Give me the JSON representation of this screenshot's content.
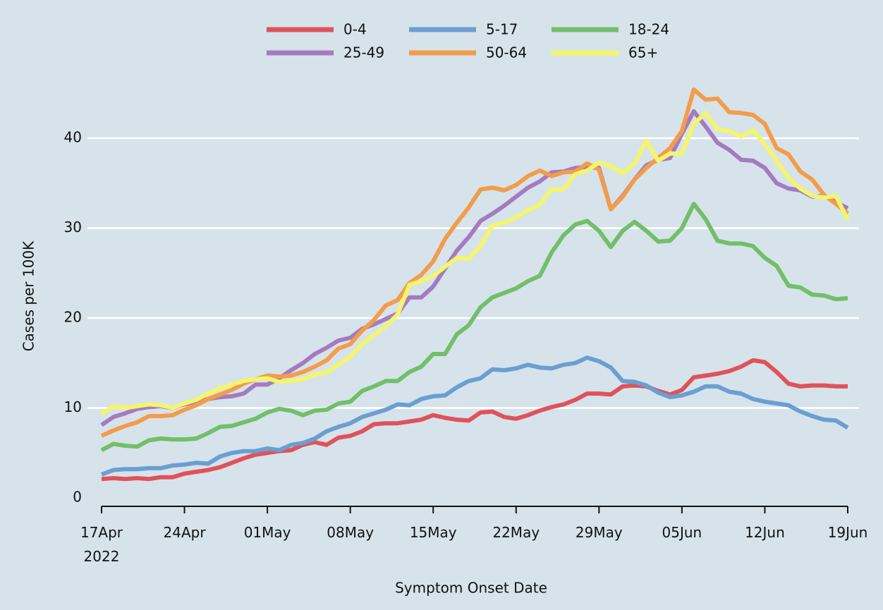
{
  "chart_data": {
    "type": "line",
    "x": [
      "2022-04-17",
      "2022-04-18",
      "2022-04-19",
      "2022-04-20",
      "2022-04-21",
      "2022-04-22",
      "2022-04-23",
      "2022-04-24",
      "2022-04-25",
      "2022-04-26",
      "2022-04-27",
      "2022-04-28",
      "2022-04-29",
      "2022-04-30",
      "2022-05-01",
      "2022-05-02",
      "2022-05-03",
      "2022-05-04",
      "2022-05-05",
      "2022-05-06",
      "2022-05-07",
      "2022-05-08",
      "2022-05-09",
      "2022-05-10",
      "2022-05-11",
      "2022-05-12",
      "2022-05-13",
      "2022-05-14",
      "2022-05-15",
      "2022-05-16",
      "2022-05-17",
      "2022-05-18",
      "2022-05-19",
      "2022-05-20",
      "2022-05-21",
      "2022-05-22",
      "2022-05-23",
      "2022-05-24",
      "2022-05-25",
      "2022-05-26",
      "2022-05-27",
      "2022-05-28",
      "2022-05-29",
      "2022-05-30",
      "2022-05-31",
      "2022-06-01",
      "2022-06-02",
      "2022-06-03",
      "2022-06-04",
      "2022-06-05",
      "2022-06-06",
      "2022-06-07",
      "2022-06-08",
      "2022-06-09",
      "2022-06-10",
      "2022-06-11",
      "2022-06-12",
      "2022-06-13",
      "2022-06-14",
      "2022-06-15",
      "2022-06-16",
      "2022-06-17",
      "2022-06-18",
      "2022-06-19"
    ],
    "series": [
      {
        "name": "0-4",
        "color": "#e0525a",
        "values": [
          2.1,
          2.2,
          2.1,
          2.2,
          2.1,
          2.3,
          2.3,
          2.7,
          2.9,
          3.1,
          3.4,
          3.9,
          4.4,
          4.8,
          5.0,
          5.2,
          5.3,
          5.9,
          6.2,
          5.9,
          6.7,
          6.9,
          7.4,
          8.2,
          8.3,
          8.3,
          8.5,
          8.7,
          9.2,
          8.9,
          8.7,
          8.6,
          9.5,
          9.6,
          9.0,
          8.8,
          9.2,
          9.7,
          10.1,
          10.4,
          10.9,
          11.6,
          11.6,
          11.5,
          12.4,
          12.5,
          12.4,
          11.9,
          11.5,
          12.0,
          13.4,
          13.6,
          13.8,
          14.1,
          14.6,
          15.3,
          15.1,
          14.0,
          12.7,
          12.4,
          12.5,
          12.5,
          12.4,
          12.4
        ]
      },
      {
        "name": "5-17",
        "color": "#6a9fd0",
        "values": [
          2.6,
          3.1,
          3.2,
          3.2,
          3.3,
          3.3,
          3.6,
          3.7,
          3.9,
          3.8,
          4.6,
          5.0,
          5.2,
          5.2,
          5.5,
          5.3,
          5.9,
          6.1,
          6.6,
          7.4,
          7.9,
          8.3,
          9.0,
          9.4,
          9.8,
          10.4,
          10.3,
          11.0,
          11.3,
          11.4,
          12.3,
          13.0,
          13.3,
          14.3,
          14.2,
          14.4,
          14.8,
          14.5,
          14.4,
          14.8,
          15.0,
          15.6,
          15.2,
          14.5,
          13.0,
          12.9,
          12.5,
          11.7,
          11.2,
          11.4,
          11.8,
          12.4,
          12.4,
          11.8,
          11.6,
          11.0,
          10.7,
          10.5,
          10.3,
          9.6,
          9.1,
          8.7,
          8.6,
          7.8
        ]
      },
      {
        "name": "18-24",
        "color": "#72bf6a",
        "values": [
          5.3,
          6.0,
          5.8,
          5.7,
          6.4,
          6.6,
          6.5,
          6.5,
          6.6,
          7.2,
          7.9,
          8.0,
          8.4,
          8.8,
          9.5,
          9.9,
          9.7,
          9.2,
          9.7,
          9.8,
          10.5,
          10.7,
          11.9,
          12.4,
          13.0,
          13.0,
          14.0,
          14.6,
          16.0,
          16.0,
          18.2,
          19.2,
          21.2,
          22.3,
          22.8,
          23.3,
          24.1,
          24.7,
          27.3,
          29.2,
          30.4,
          30.8,
          29.7,
          27.9,
          29.7,
          30.7,
          29.7,
          28.5,
          28.6,
          30.0,
          32.7,
          31.0,
          28.6,
          28.3,
          28.3,
          28.0,
          26.7,
          25.8,
          23.6,
          23.4,
          22.6,
          22.5,
          22.1,
          22.2
        ]
      },
      {
        "name": "25-49",
        "color": "#a57bc0",
        "values": [
          8.1,
          9.0,
          9.4,
          9.9,
          10.1,
          10.2,
          10.0,
          10.4,
          10.7,
          11.0,
          11.2,
          11.3,
          11.6,
          12.6,
          12.6,
          13.3,
          14.2,
          15.0,
          16.0,
          16.7,
          17.5,
          17.8,
          18.8,
          19.3,
          19.9,
          20.5,
          22.3,
          22.3,
          23.5,
          25.5,
          27.5,
          29.0,
          30.8,
          31.6,
          32.5,
          33.5,
          34.5,
          35.2,
          36.2,
          36.3,
          36.7,
          36.8,
          36.7,
          32.1,
          33.6,
          35.4,
          37.0,
          37.6,
          37.8,
          40.5,
          43.0,
          41.3,
          39.5,
          38.7,
          37.6,
          37.5,
          36.7,
          35.0,
          34.4,
          34.2,
          33.5,
          33.6,
          32.9,
          32.2
        ]
      },
      {
        "name": "50-64",
        "color": "#f39c4a",
        "values": [
          6.9,
          7.5,
          8.0,
          8.4,
          9.1,
          9.1,
          9.2,
          9.8,
          10.3,
          11.0,
          11.5,
          12.0,
          12.7,
          13.2,
          13.6,
          13.5,
          13.6,
          14.0,
          14.6,
          15.3,
          16.6,
          17.1,
          18.6,
          19.8,
          21.4,
          22.0,
          23.9,
          24.8,
          26.3,
          28.8,
          30.6,
          32.3,
          34.3,
          34.5,
          34.2,
          34.8,
          35.8,
          36.4,
          35.8,
          36.2,
          36.3,
          37.2,
          36.5,
          32.1,
          33.5,
          35.4,
          36.7,
          37.8,
          38.9,
          40.8,
          45.4,
          44.3,
          44.4,
          42.9,
          42.8,
          42.6,
          41.6,
          38.9,
          38.2,
          36.3,
          35.4,
          33.7,
          32.7,
          31.6
        ]
      },
      {
        "name": "65+",
        "color": "#f5f56a",
        "values": [
          9.3,
          10.2,
          10.0,
          10.2,
          10.4,
          10.3,
          10.0,
          10.5,
          10.9,
          11.6,
          12.2,
          12.6,
          13.0,
          13.2,
          13.3,
          12.9,
          13.0,
          13.2,
          13.7,
          14.0,
          14.8,
          15.7,
          17.1,
          18.1,
          19.1,
          20.4,
          23.7,
          24.1,
          24.7,
          25.7,
          26.7,
          26.6,
          28.0,
          30.3,
          30.6,
          31.2,
          32.0,
          32.6,
          34.3,
          34.3,
          36.0,
          36.4,
          37.3,
          36.9,
          36.1,
          37.2,
          39.7,
          37.5,
          38.3,
          38.3,
          41.6,
          42.8,
          41.0,
          40.8,
          40.2,
          40.9,
          39.3,
          37.5,
          35.6,
          34.4,
          33.6,
          33.4,
          33.6,
          30.9
        ]
      }
    ],
    "xlabel": "Symptom Onset Date",
    "ylabel": "Cases per 100K",
    "xlim": [
      "2022-04-17",
      "2022-06-19"
    ],
    "xticks": [
      {
        "value": "2022-04-17",
        "label": "17Apr\n2022"
      },
      {
        "value": "2022-04-24",
        "label": "24Apr"
      },
      {
        "value": "2022-05-01",
        "label": "01May"
      },
      {
        "value": "2022-05-08",
        "label": "08May"
      },
      {
        "value": "2022-05-15",
        "label": "15May"
      },
      {
        "value": "2022-05-22",
        "label": "22May"
      },
      {
        "value": "2022-05-29",
        "label": "29May"
      },
      {
        "value": "2022-06-05",
        "label": "05Jun"
      },
      {
        "value": "2022-06-12",
        "label": "12Jun"
      },
      {
        "value": "2022-06-19",
        "label": "19Jun"
      }
    ],
    "ylim": [
      -1,
      46
    ],
    "yticks": [
      0,
      10,
      20,
      30,
      40
    ],
    "grid": true,
    "legend": "top"
  }
}
